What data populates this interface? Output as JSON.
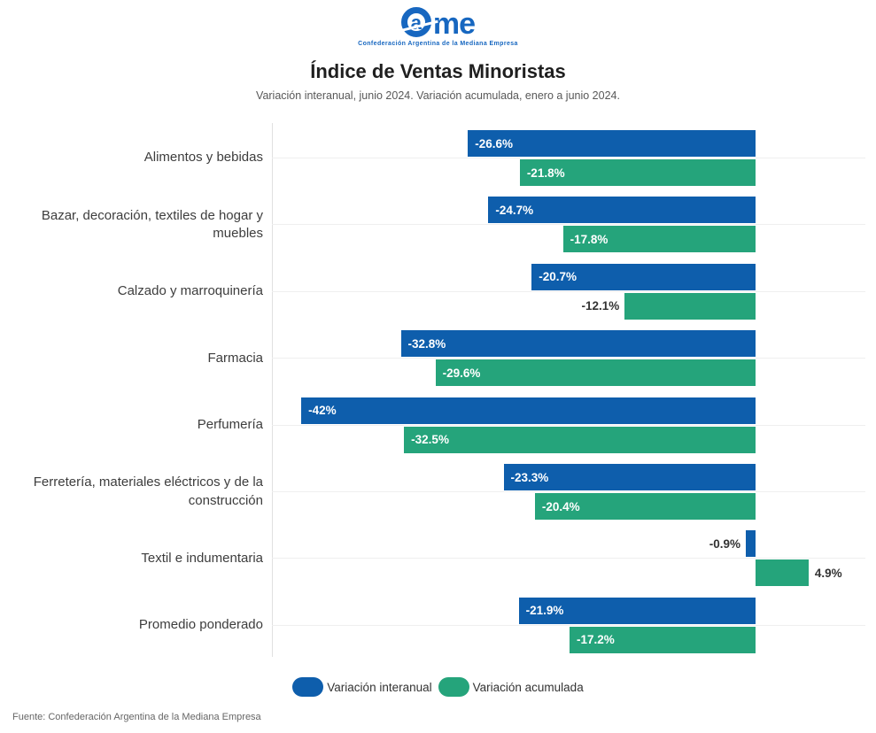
{
  "logo": {
    "brand_c_letter": "a",
    "brand_rest": "me",
    "caption": "Confederación Argentina de la Mediana Empresa",
    "color": "#1767c0"
  },
  "header": {
    "title": "Índice de Ventas Minoristas",
    "subtitle": "Variación interanual, junio 2024. Variación acumulada, enero a junio 2024."
  },
  "chart_data": {
    "type": "bar",
    "orientation": "horizontal",
    "title": "Índice de Ventas Minoristas",
    "subtitle": "Variación interanual, junio 2024. Variación acumulada, enero a junio 2024.",
    "xlabel": "",
    "ylabel": "",
    "xlim": [
      -45,
      10
    ],
    "grid": "per-category horizontal gridlines, no tick labels",
    "legend_position": "bottom-center",
    "categories": [
      "Alimentos y bebidas",
      "Bazar, decoración, textiles de hogar y muebles",
      "Calzado y marroquinería",
      "Farmacia",
      "Perfumería",
      "Ferretería, materiales eléctricos y de la construcción",
      "Textil e indumentaria",
      "Promedio ponderado"
    ],
    "series": [
      {
        "name": "Variación interanual",
        "color": "#0e5eac",
        "values": [
          -26.6,
          -24.7,
          -20.7,
          -32.8,
          -42,
          -23.3,
          -0.9,
          -21.9
        ],
        "value_labels": [
          "-26.6%",
          "-24.7%",
          "-20.7%",
          "-32.8%",
          "-42%",
          "-23.3%",
          "-0.9%",
          "-21.9%"
        ],
        "label_inside": [
          true,
          true,
          true,
          true,
          true,
          true,
          false,
          true
        ]
      },
      {
        "name": "Variación acumulada",
        "color": "#25a47b",
        "values": [
          -21.8,
          -17.8,
          -12.1,
          -29.6,
          -32.5,
          -20.4,
          4.9,
          -17.2
        ],
        "value_labels": [
          "-21.8%",
          "-17.8%",
          "-12.1%",
          "-29.6%",
          "-32.5%",
          "-20.4%",
          "4.9%",
          "-17.2%"
        ],
        "label_inside": [
          true,
          true,
          false,
          true,
          true,
          true,
          false,
          true
        ]
      }
    ]
  },
  "legend": {
    "items": [
      {
        "label": "Variación interanual",
        "color": "#0e5eac"
      },
      {
        "label": "Variación acumulada",
        "color": "#25a47b"
      }
    ]
  },
  "footer": {
    "source": "Fuente: Confederación Argentina de la Mediana Empresa"
  }
}
